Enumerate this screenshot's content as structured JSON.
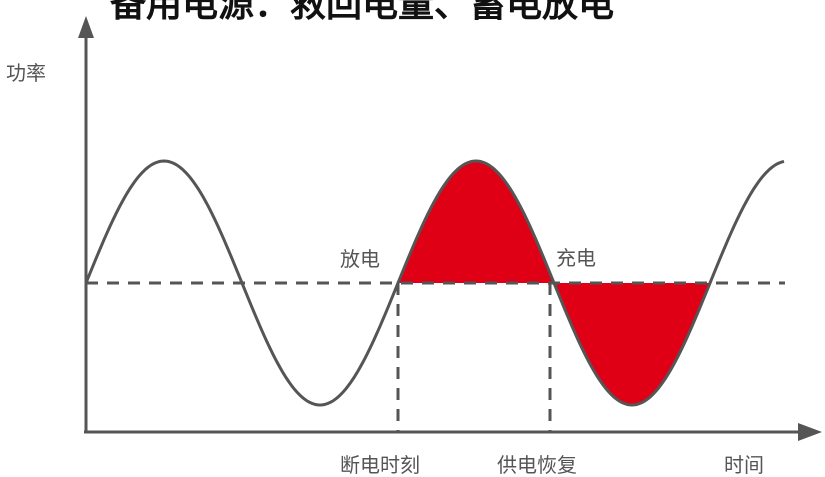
{
  "figure": {
    "title_partial": "备用电源：救回电量、蓄电放电",
    "y_axis_label": "功率",
    "x_axis_label": "时间",
    "discharge_label": "放电",
    "charge_label": "充电",
    "outage_moment_label": "断电时刻",
    "power_restored_label": "供电恢复"
  },
  "colors": {
    "fill": "#e00016",
    "curve": "#555555",
    "axis": "#555555",
    "dashed": "#555555"
  }
}
